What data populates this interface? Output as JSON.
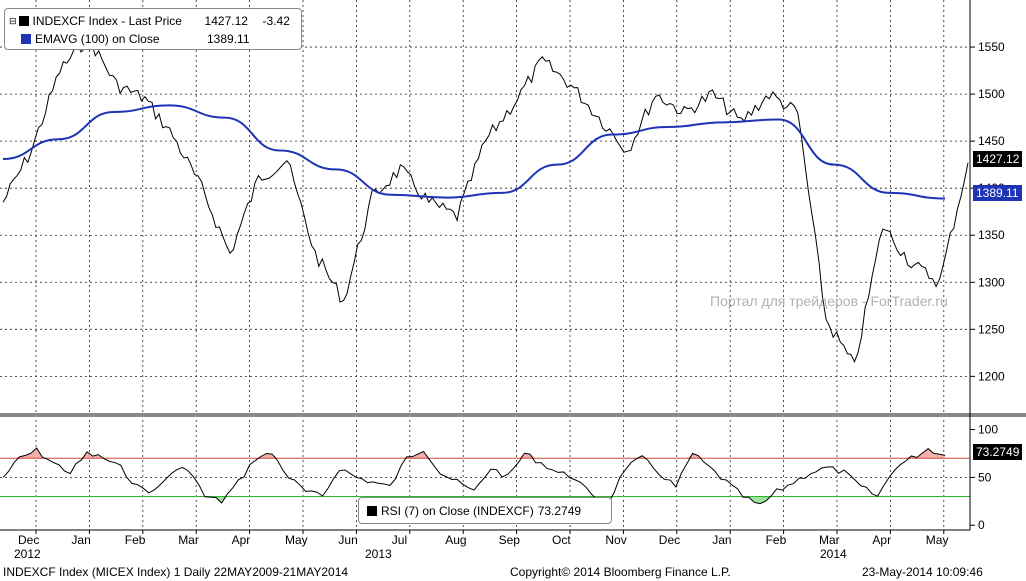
{
  "legend": {
    "main": [
      {
        "label": "INDEXCF Index - Last Price",
        "value": "1427.12",
        "change": "-3.42",
        "color": "#000000",
        "icon": "black-square-icon"
      },
      {
        "label": "EMAVG (100) on Close",
        "value": "1389.11",
        "change": "",
        "color": "#1f33b5",
        "icon": "blue-square-icon"
      }
    ],
    "rsi": {
      "label": "RSI (7) on Close (INDEXCF)",
      "value": "73.2749",
      "color": "#000000"
    }
  },
  "price_tags": {
    "last": "1427.12",
    "ema": "1389.11",
    "rsi": "73.2749"
  },
  "watermark": "Портал для трейдеров - ForTrader.ru",
  "footer": {
    "left": "INDEXCF Index (MICEX Index) 1  Daily 22MAY2009-21MAY2014",
    "center": "Copyright© 2014 Bloomberg Finance L.P.",
    "right": "23-May-2014 10:09:46"
  },
  "colors": {
    "ema": "#1f33b5",
    "price": "#000000",
    "rsi_upper": "#d44a3a",
    "rsi_lower": "#2eb82e",
    "rsi_upper_fill": "#f2b0a8",
    "rsi_lower_fill": "#9ee09e",
    "ema_tag": "#1f33b5",
    "last_tag": "#000000"
  },
  "chart_data": [
    {
      "type": "line",
      "title": "INDEXCF Index - Last Price",
      "x_axis": {
        "month_labels": [
          "Dec",
          "Jan",
          "Feb",
          "Mar",
          "Apr",
          "May",
          "Jun",
          "Jul",
          "Aug",
          "Sep",
          "Oct",
          "Nov",
          "Dec",
          "Jan",
          "Feb",
          "Mar",
          "Apr",
          "May"
        ],
        "year_labels": [
          "2012",
          "2013",
          "2014"
        ]
      },
      "ylim": [
        1160,
        1600
      ],
      "yticks": [
        1200,
        1250,
        1300,
        1350,
        1400,
        1450,
        1500,
        1550
      ],
      "grid": true,
      "series": [
        {
          "name": "INDEXCF Index - Last Price",
          "x": [
            "Dec 2012",
            "Dec 2012",
            "Jan 2013",
            "Jan 2013",
            "Feb 2013",
            "Mar 2013",
            "Mar 2013",
            "Apr 2013",
            "Apr 2013",
            "May 2013",
            "May 2013",
            "Jun 2013",
            "Jun 2013",
            "Jul 2013",
            "Jul 2013",
            "Aug 2013",
            "Aug 2013",
            "Sep 2013",
            "Sep 2013",
            "Oct 2013",
            "Oct 2013",
            "Nov 2013",
            "Nov 2013",
            "Dec 2013",
            "Dec 2013",
            "Jan 2014",
            "Jan 2014",
            "Feb 2014",
            "Feb 2014",
            "Mar 2014",
            "Mar 2014",
            "Apr 2014",
            "Apr 2014",
            "May 2014",
            "May 2014"
          ],
          "values": [
            1385,
            1440,
            1525,
            1560,
            1510,
            1495,
            1455,
            1400,
            1330,
            1410,
            1430,
            1330,
            1280,
            1390,
            1420,
            1385,
            1370,
            1450,
            1490,
            1535,
            1510,
            1475,
            1440,
            1500,
            1480,
            1500,
            1470,
            1500,
            1480,
            1260,
            1210,
            1360,
            1320,
            1300,
            1427
          ]
        },
        {
          "name": "EMAVG (100) on Close",
          "x": [
            "Dec 2012",
            "Jan 2013",
            "Feb 2013",
            "Mar 2013",
            "Apr 2013",
            "May 2013",
            "Jun 2013",
            "Jul 2013",
            "Aug 2013",
            "Sep 2013",
            "Oct 2013",
            "Nov 2013",
            "Dec 2013",
            "Jan 2014",
            "Feb 2014",
            "Mar 2014",
            "Apr 2014",
            "May 2014"
          ],
          "values": [
            1431,
            1452,
            1481,
            1488,
            1475,
            1440,
            1420,
            1393,
            1390,
            1395,
            1425,
            1457,
            1465,
            1470,
            1473,
            1425,
            1395,
            1389
          ]
        }
      ]
    },
    {
      "type": "line",
      "title": "RSI (7) on Close (INDEXCF)",
      "ylim": [
        -5,
        110
      ],
      "yticks": [
        0,
        50,
        100
      ],
      "reference_lines": [
        70,
        30
      ],
      "series": [
        {
          "name": "RSI (7) on Close (INDEXCF)",
          "values": [
            50,
            70,
            78,
            65,
            55,
            75,
            70,
            60,
            40,
            35,
            55,
            60,
            30,
            25,
            45,
            70,
            75,
            50,
            35,
            30,
            60,
            50,
            45,
            40,
            70,
            80,
            55,
            45,
            35,
            60,
            50,
            75,
            65,
            55,
            50,
            30,
            25,
            60,
            70,
            55,
            40,
            75,
            60,
            45,
            30,
            20,
            35,
            45,
            55,
            60,
            55,
            40,
            30,
            60,
            70,
            80,
            73
          ]
        }
      ]
    }
  ]
}
